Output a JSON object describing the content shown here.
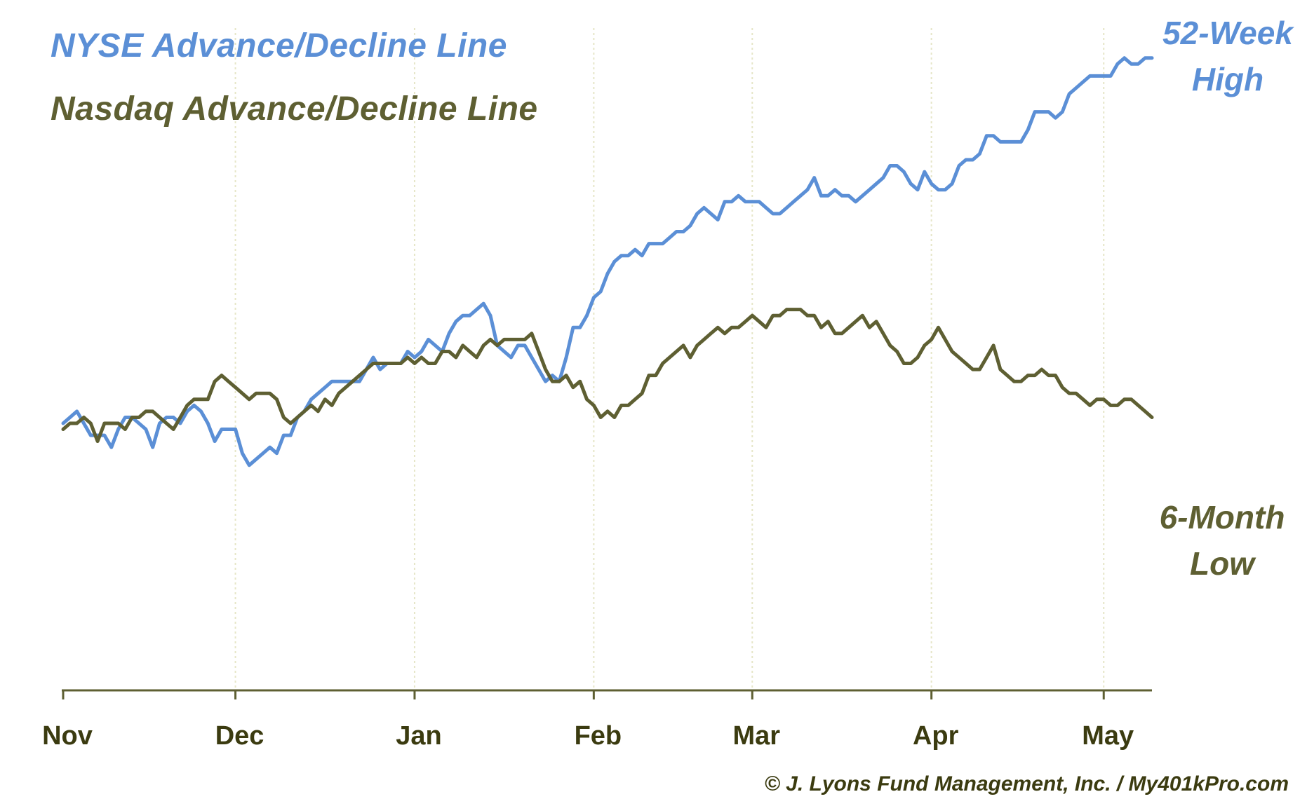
{
  "chart_data": {
    "type": "line",
    "title": "",
    "xlabel": "",
    "ylabel": "",
    "x_tick_labels": [
      "Nov",
      "Dec",
      "Jan",
      "Feb",
      "Mar",
      "Apr",
      "May"
    ],
    "y_axis_shown": false,
    "grid": "vertical dotted lines at month boundaries",
    "legend_placement": "top-left",
    "series": [
      {
        "name": "NYSE Advance/Decline Line",
        "color": "#5b8fd6",
        "end_label": "52-Week High",
        "values": [
          54,
          55,
          56,
          54,
          52,
          52,
          52,
          50,
          53,
          55,
          55,
          54,
          53,
          50,
          54,
          55,
          55,
          54,
          56,
          57,
          56,
          54,
          51,
          53,
          53,
          53,
          49,
          47,
          48,
          49,
          50,
          49,
          52,
          52,
          55,
          56,
          58,
          59,
          60,
          61,
          61,
          61,
          61,
          61,
          63,
          65,
          63,
          64,
          64,
          64,
          66,
          65,
          66,
          68,
          67,
          66,
          69,
          71,
          72,
          72,
          73,
          74,
          72,
          67,
          66,
          65,
          67,
          67,
          65,
          63,
          61,
          62,
          61,
          65,
          70,
          70,
          72,
          75,
          76,
          79,
          81,
          82,
          82,
          83,
          82,
          84,
          84,
          84,
          85,
          86,
          86,
          87,
          89,
          90,
          89,
          88,
          91,
          91,
          92,
          91,
          91,
          91,
          90,
          89,
          89,
          90,
          91,
          92,
          93,
          95,
          92,
          92,
          93,
          92,
          92,
          91,
          92,
          93,
          94,
          95,
          97,
          97,
          96,
          94,
          93,
          96,
          94,
          93,
          93,
          94,
          97,
          98,
          98,
          99,
          102,
          102,
          101,
          101,
          101,
          101,
          103,
          106,
          106,
          106,
          105,
          106,
          109,
          110,
          111,
          112,
          112,
          112,
          112,
          114,
          115,
          114,
          114,
          115,
          115
        ]
      },
      {
        "name": "Nasdaq Advance/Decline Line",
        "color": "#5e5f32",
        "end_label": "6-Month Low",
        "values": [
          53,
          54,
          54,
          55,
          54,
          51,
          54,
          54,
          54,
          53,
          55,
          55,
          56,
          56,
          55,
          54,
          53,
          55,
          57,
          58,
          58,
          58,
          61,
          62,
          61,
          60,
          59,
          58,
          59,
          59,
          59,
          58,
          55,
          54,
          55,
          56,
          57,
          56,
          58,
          57,
          59,
          60,
          61,
          62,
          63,
          64,
          64,
          64,
          64,
          64,
          65,
          64,
          65,
          64,
          64,
          66,
          66,
          65,
          67,
          66,
          65,
          67,
          68,
          67,
          68,
          68,
          68,
          68,
          69,
          66,
          63,
          61,
          61,
          62,
          60,
          61,
          58,
          57,
          55,
          56,
          55,
          57,
          57,
          58,
          59,
          62,
          62,
          64,
          65,
          66,
          67,
          65,
          67,
          68,
          69,
          70,
          69,
          70,
          70,
          71,
          72,
          71,
          70,
          72,
          72,
          73,
          73,
          73,
          72,
          72,
          70,
          71,
          69,
          69,
          70,
          71,
          72,
          70,
          71,
          69,
          67,
          66,
          64,
          64,
          65,
          67,
          68,
          70,
          68,
          66,
          65,
          64,
          63,
          63,
          65,
          67,
          63,
          62,
          61,
          61,
          62,
          62,
          63,
          62,
          62,
          60,
          59,
          59,
          58,
          57,
          58,
          58,
          57,
          57,
          58,
          58,
          57,
          56,
          55
        ]
      }
    ]
  },
  "legend": {
    "nyse_label": "NYSE Advance/Decline Line",
    "nasdaq_label": "Nasdaq Advance/Decline Line"
  },
  "end_labels": {
    "nyse_line1": "52-Week",
    "nyse_line2": "High",
    "nasdaq_line1": "6-Month",
    "nasdaq_line2": "Low"
  },
  "footer": "© J. Lyons Fund Management, Inc. / My401kPro.com"
}
